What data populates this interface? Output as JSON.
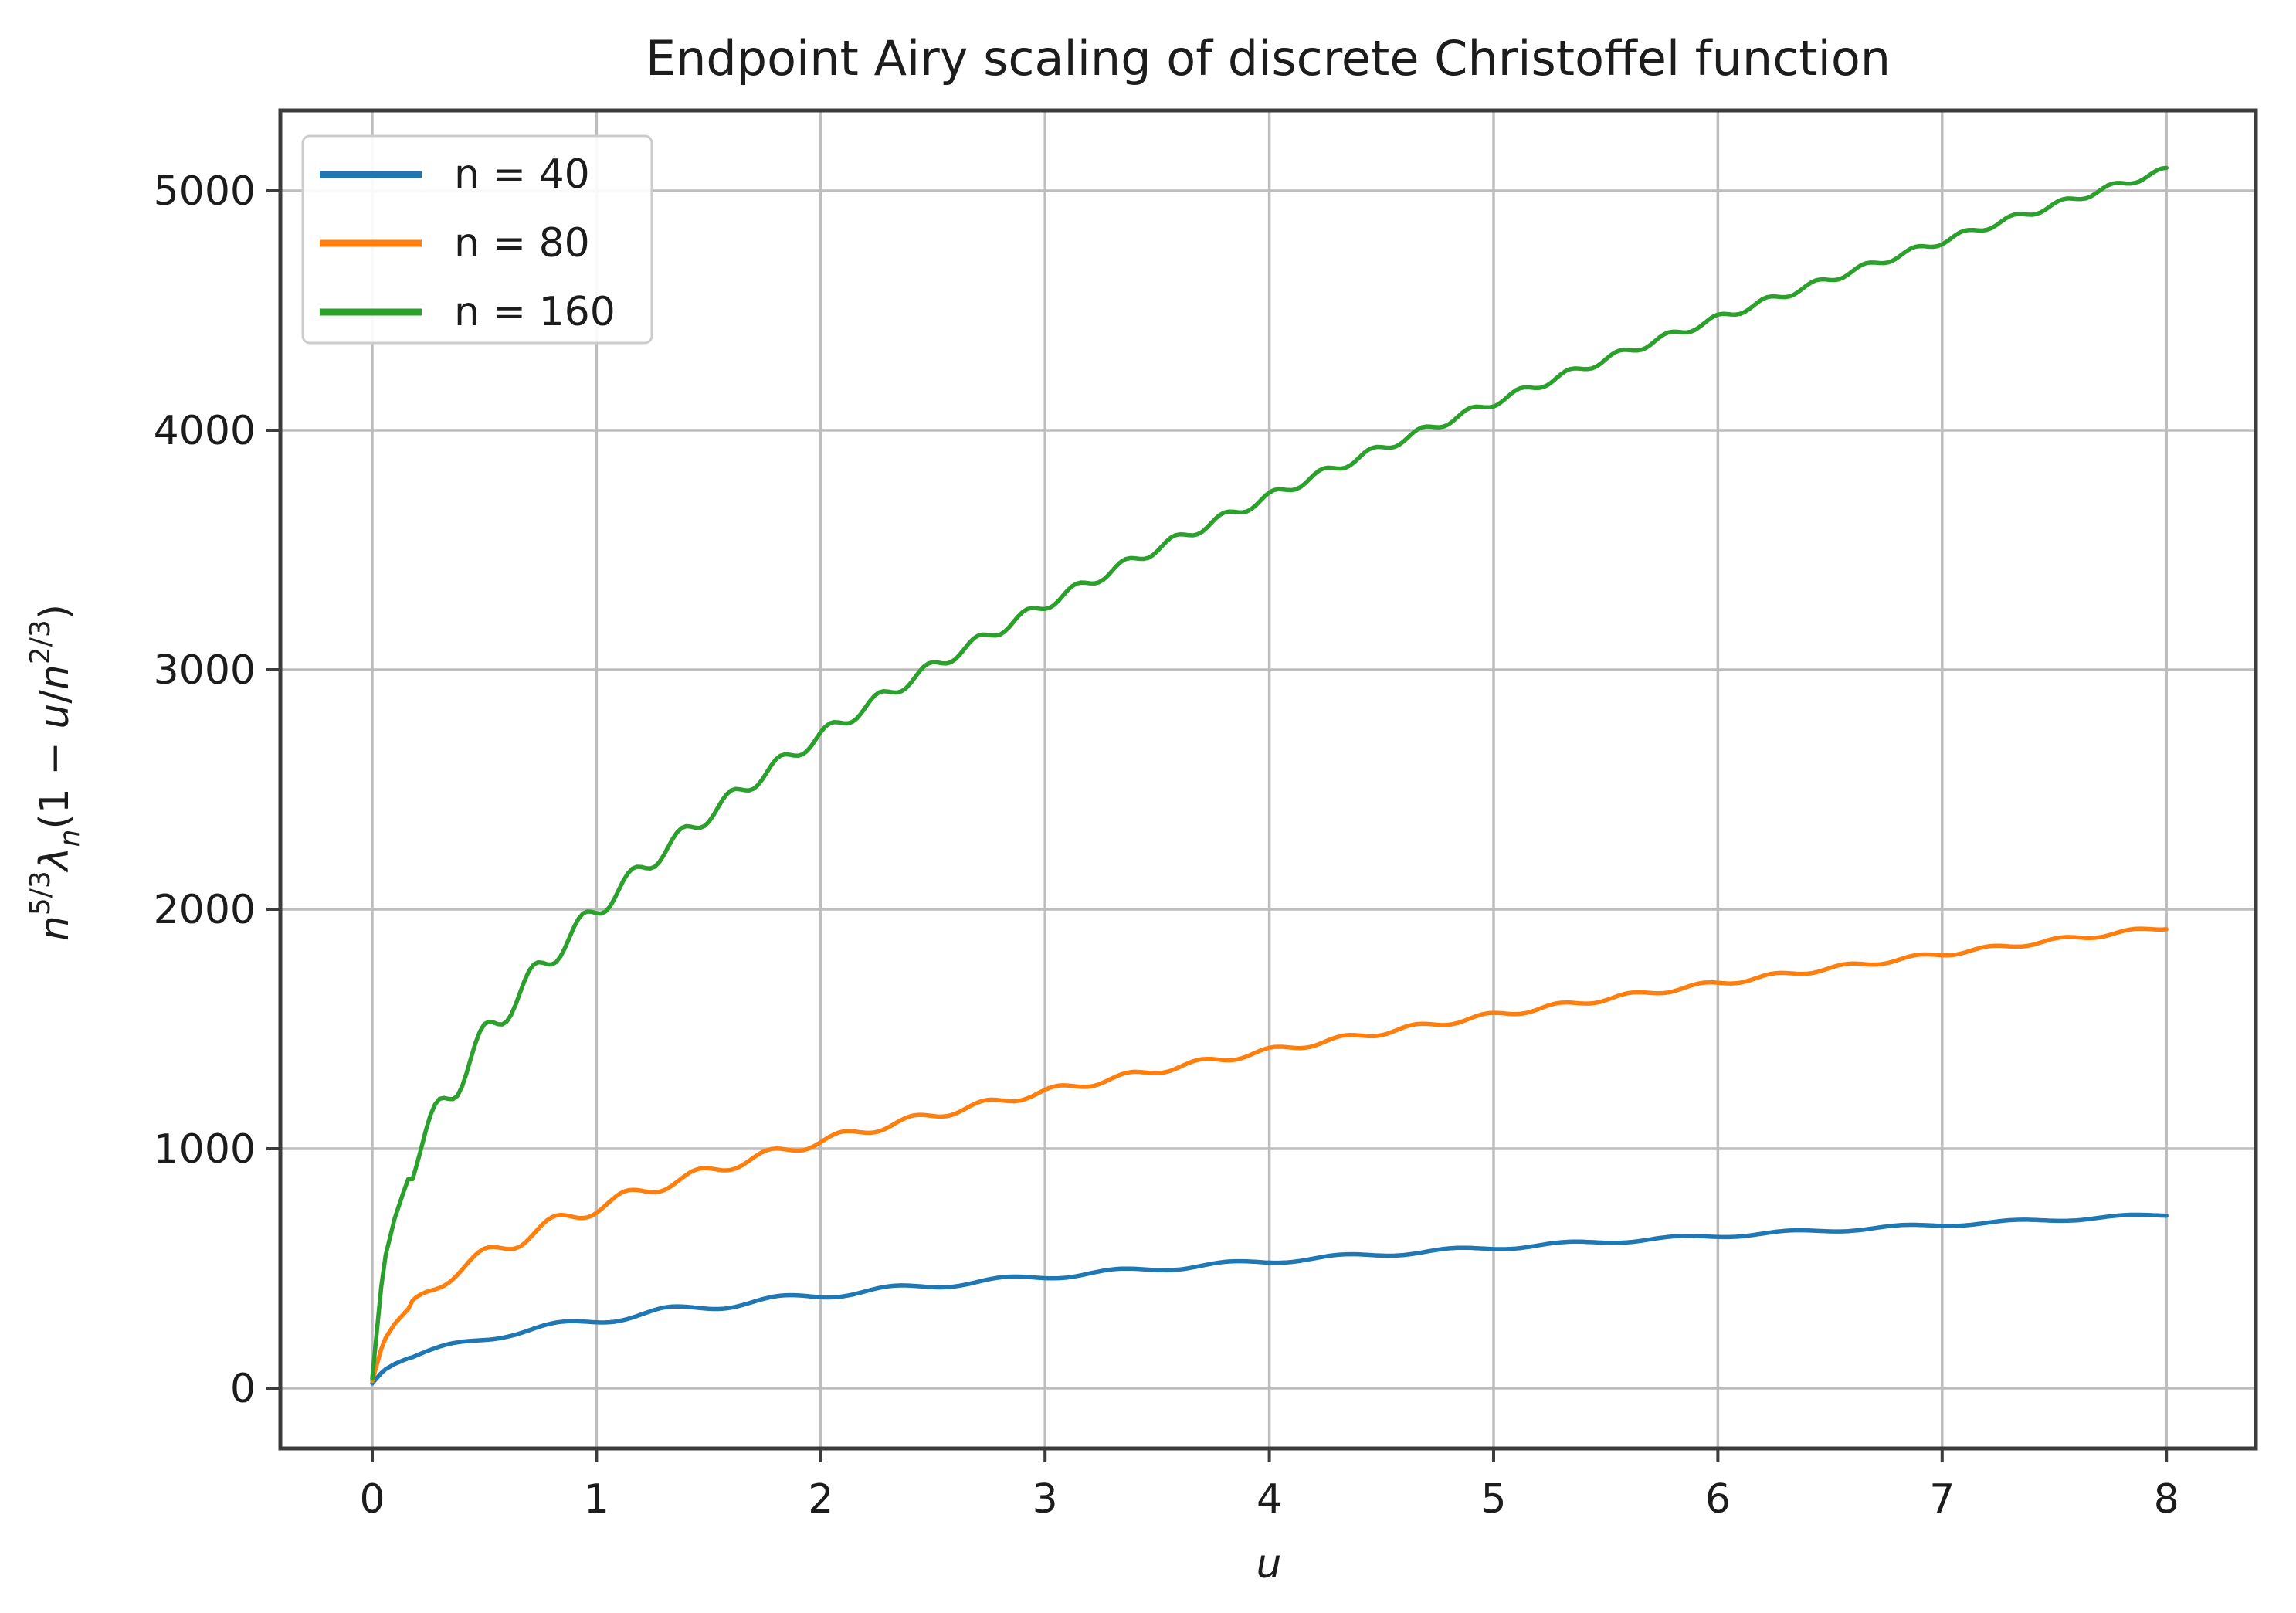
{
  "title": "Endpoint Airy scaling of discrete Christoffel function",
  "colors": {
    "background": "#ffffff",
    "grid": "#bdbdbd",
    "spine": "#3c3c3c",
    "text": "#1c1c1c",
    "legend_border": "#cccccc"
  },
  "chart_data": {
    "type": "line",
    "title": "Endpoint Airy scaling of discrete Christoffel function",
    "xlabel": "u",
    "ylabel": "n^{5/3} λ_n (1 − u/n^{2/3})",
    "ylabel_parts": {
      "base1": "n",
      "sup1": "5/3",
      "lambda": "λ",
      "sub1": "n",
      "mid": "(1 − ",
      "uvar": "u",
      "slash": "/",
      "base2": "n",
      "sup2": "2/3",
      "close": ")"
    },
    "grid": true,
    "legend_position": "upper left",
    "xlim": [
      -0.41,
      8.41
    ],
    "ylim": [
      -255,
      5340
    ],
    "xticks": [
      0,
      1,
      2,
      3,
      4,
      5,
      6,
      7,
      8
    ],
    "yticks": [
      0,
      1000,
      2000,
      3000,
      4000,
      5000
    ],
    "x": [
      0,
      0.05,
      0.1,
      0.15,
      0.2,
      0.25,
      0.3,
      0.35,
      0.4,
      0.45,
      0.5,
      0.55,
      0.6,
      0.65,
      0.7,
      0.75,
      0.8,
      0.85,
      0.9,
      0.95,
      1,
      1.1,
      1.2,
      1.3,
      1.4,
      1.5,
      1.6,
      1.7,
      1.8,
      1.9,
      2,
      2.25,
      2.5,
      2.75,
      3,
      3.25,
      3.5,
      3.75,
      4,
      4.25,
      4.5,
      4.75,
      5,
      5.25,
      5.5,
      5.75,
      6,
      6.25,
      6.5,
      6.75,
      7,
      7.25,
      7.5,
      7.75,
      8
    ],
    "series": [
      {
        "name": "n = 40",
        "color": "#1f77b4",
        "values": [
          20,
          74,
          101,
          121,
          138,
          152,
          165,
          177,
          188,
          198,
          208,
          217,
          226,
          234,
          242,
          250,
          257,
          264,
          271,
          278,
          284,
          296,
          308,
          320,
          330,
          341,
          351,
          361,
          370,
          379,
          388,
          409,
          429,
          448,
          466,
          483,
          499,
          515,
          530,
          545,
          559,
          573,
          586,
          599,
          612,
          624,
          636,
          648,
          659,
          671,
          682,
          693,
          703,
          714,
          724
        ],
        "model": {
          "A": 284,
          "p": 0.45,
          "period": 0.5,
          "phase": 0.45,
          "amp_scale": 2.0
        }
      },
      {
        "name": "n = 80",
        "color": "#ff7f0e",
        "values": [
          30,
          196,
          268,
          321,
          366,
          405,
          439,
          471,
          500,
          527,
          553,
          577,
          600,
          622,
          643,
          663,
          683,
          702,
          720,
          738,
          755,
          788,
          820,
          850,
          878,
          906,
          933,
          959,
          984,
          1008,
          1031,
          1088,
          1140,
          1190,
          1238,
          1283,
          1327,
          1369,
          1409,
          1448,
          1486,
          1522,
          1558,
          1592,
          1626,
          1659,
          1691,
          1722,
          1753,
          1783,
          1813,
          1841,
          1870,
          1897,
          1925
        ],
        "model": {
          "A": 755,
          "p": 0.45,
          "period": 0.32,
          "phase": 0.25,
          "amp_scale": 1.6
        }
      },
      {
        "name": "n = 160",
        "color": "#2ca02c",
        "values": [
          40,
          518,
          708,
          849,
          967,
          1069,
          1160,
          1244,
          1321,
          1393,
          1461,
          1524,
          1585,
          1643,
          1699,
          1753,
          1804,
          1854,
          1903,
          1950,
          1995,
          2082,
          2166,
          2245,
          2321,
          2394,
          2465,
          2533,
          2599,
          2663,
          2725,
          2874,
          3013,
          3145,
          3271,
          3391,
          3506,
          3616,
          3723,
          3826,
          3925,
          4022,
          4116,
          4207,
          4296,
          4383,
          4468,
          4551,
          4632,
          4712,
          4789,
          4866,
          4940,
          5014,
          5086
        ],
        "model": {
          "A": 1995,
          "p": 0.45,
          "period": 0.22,
          "phase": 0.11,
          "amp_scale": 1.3
        }
      }
    ]
  }
}
